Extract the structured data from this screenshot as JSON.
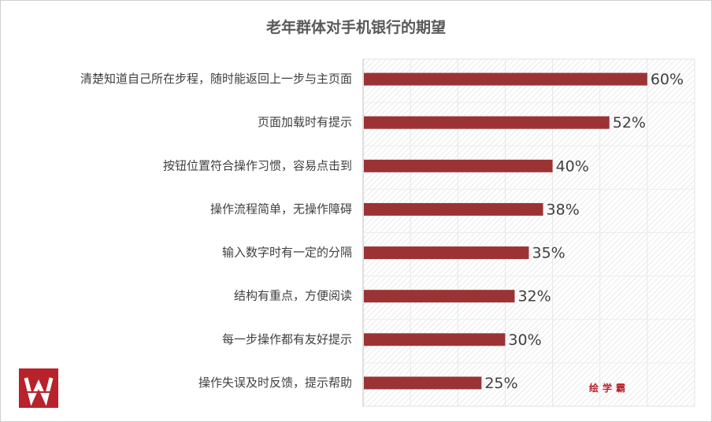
{
  "chart_data": {
    "type": "bar",
    "orientation": "horizontal",
    "title": "老年群体对手机银行的期望",
    "categories": [
      "清楚知道自己所在步程，随时能返回上一步与主页面",
      "页面加载时有提示",
      "按钮位置符合操作习惯，容易点击到",
      "操作流程简单，无操作障碍",
      "输入数字时有一定的分隔",
      "结构有重点，方便阅读",
      "每一步操作都有友好提示",
      "操作失误及时反馈，提示帮助"
    ],
    "values": [
      60,
      52,
      40,
      38,
      35,
      32,
      30,
      25
    ],
    "value_labels": [
      "60%",
      "52%",
      "40%",
      "38%",
      "35%",
      "32%",
      "30%",
      "25%"
    ],
    "unit": "%",
    "xlim": [
      0,
      70
    ],
    "grid": true,
    "bar_color": "#9b3335",
    "background": "hatched"
  },
  "watermark": "绘学霸",
  "colors": {
    "bar": "#9b3335",
    "title": "#595959",
    "text": "#404040",
    "logo": "#b8222a"
  }
}
